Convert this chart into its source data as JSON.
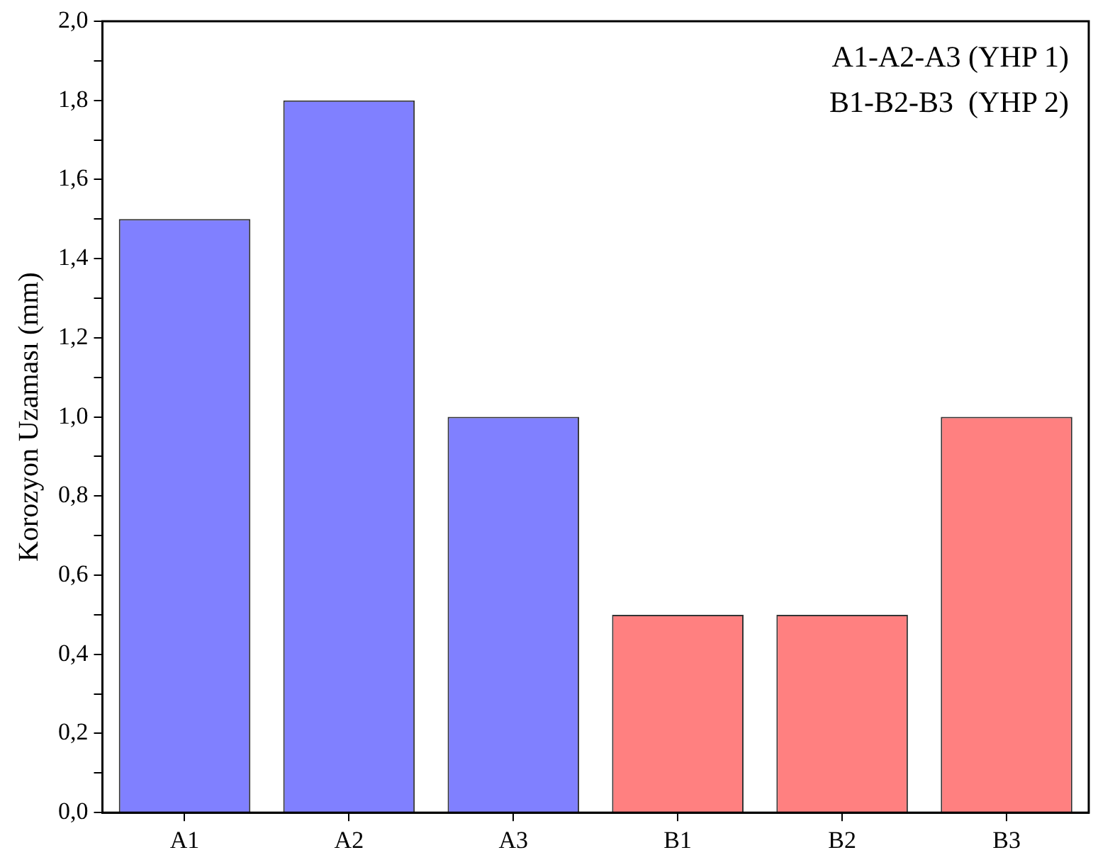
{
  "chart_data": {
    "type": "bar",
    "ylabel": "Korozyon Uzaması (mm)",
    "categories": [
      "A1",
      "A2",
      "A3",
      "B1",
      "B2",
      "B3"
    ],
    "values": [
      1.5,
      1.8,
      1.0,
      0.5,
      0.5,
      1.0
    ],
    "colors": [
      "#8080ff",
      "#8080ff",
      "#8080ff",
      "#ff8080",
      "#ff8080",
      "#ff8080"
    ],
    "ylim": [
      0,
      2
    ],
    "yticks": [
      {
        "value": 0,
        "label": "0,0"
      },
      {
        "value": 0.1,
        "label": null
      },
      {
        "value": 0.2,
        "label": "0,2"
      },
      {
        "value": 0.3,
        "label": null
      },
      {
        "value": 0.4,
        "label": "0,4"
      },
      {
        "value": 0.5,
        "label": null
      },
      {
        "value": 0.6,
        "label": "0,6"
      },
      {
        "value": 0.7,
        "label": null
      },
      {
        "value": 0.8,
        "label": "0,8"
      },
      {
        "value": 0.9,
        "label": null
      },
      {
        "value": 1.0,
        "label": "1,0"
      },
      {
        "value": 1.1,
        "label": null
      },
      {
        "value": 1.2,
        "label": "1,2"
      },
      {
        "value": 1.3,
        "label": null
      },
      {
        "value": 1.4,
        "label": "1,4"
      },
      {
        "value": 1.5,
        "label": null
      },
      {
        "value": 1.6,
        "label": "1,6"
      },
      {
        "value": 1.7,
        "label": null
      },
      {
        "value": 1.8,
        "label": "1,8"
      },
      {
        "value": 1.9,
        "label": null
      },
      {
        "value": 2.0,
        "label": "2,0"
      }
    ],
    "grid": false,
    "annotations": [
      "A1-A2-A3 (YHP 1)",
      "B1-B2-B3  (YHP 2)"
    ]
  }
}
